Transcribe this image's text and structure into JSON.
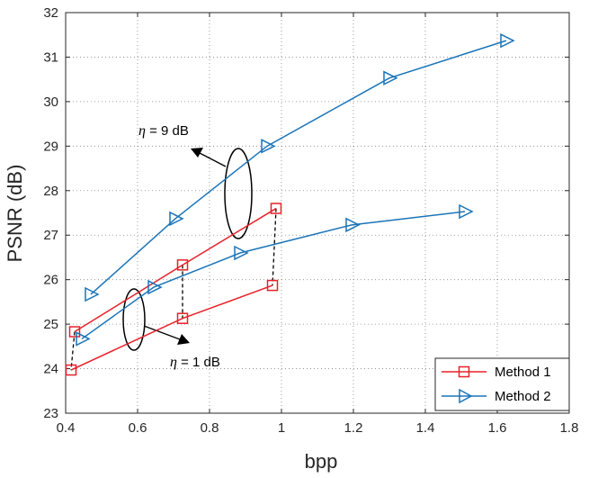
{
  "chart_data": {
    "type": "line",
    "xlabel": "bpp",
    "ylabel": "PSNR (dB)",
    "xlim": [
      0.4,
      1.8
    ],
    "ylim": [
      23,
      32
    ],
    "xticks": [
      "0.4",
      "0.6",
      "0.8",
      "1",
      "1.2",
      "1.4",
      "1.6",
      "1.8"
    ],
    "yticks": [
      "23",
      "24",
      "25",
      "26",
      "27",
      "28",
      "29",
      "30",
      "31",
      "32"
    ],
    "grid": true,
    "legend_position": "bottom-right",
    "series": [
      {
        "name": "Method 1",
        "color": "#e8202a",
        "marker": "square",
        "group": "eta = 9 dB",
        "x": [
          0.425,
          0.725,
          0.985
        ],
        "y": [
          24.83,
          26.33,
          27.6
        ]
      },
      {
        "name": "Method 1",
        "color": "#e8202a",
        "marker": "square",
        "group": "eta = 1 dB",
        "x": [
          0.415,
          0.725,
          0.975
        ],
        "y": [
          23.97,
          25.13,
          25.87
        ]
      },
      {
        "name": "Method 2",
        "color": "#1a74b8",
        "marker": "triangle-right",
        "group": "eta = 9 dB",
        "x": [
          0.47,
          0.705,
          0.96,
          1.3,
          1.625
        ],
        "y": [
          25.67,
          27.37,
          29.0,
          30.53,
          31.37
        ]
      },
      {
        "name": "Method 2",
        "color": "#1a74b8",
        "marker": "triangle-right",
        "group": "eta = 1 dB",
        "x": [
          0.445,
          0.645,
          0.885,
          1.195,
          1.51
        ],
        "y": [
          24.67,
          25.83,
          26.6,
          27.23,
          27.53
        ]
      }
    ],
    "annotations": [
      {
        "eta": "η",
        "text": " = 9 dB"
      },
      {
        "eta": "η",
        "text": " = 1 dB"
      }
    ],
    "legend": [
      "Method 1",
      "Method 2"
    ]
  }
}
